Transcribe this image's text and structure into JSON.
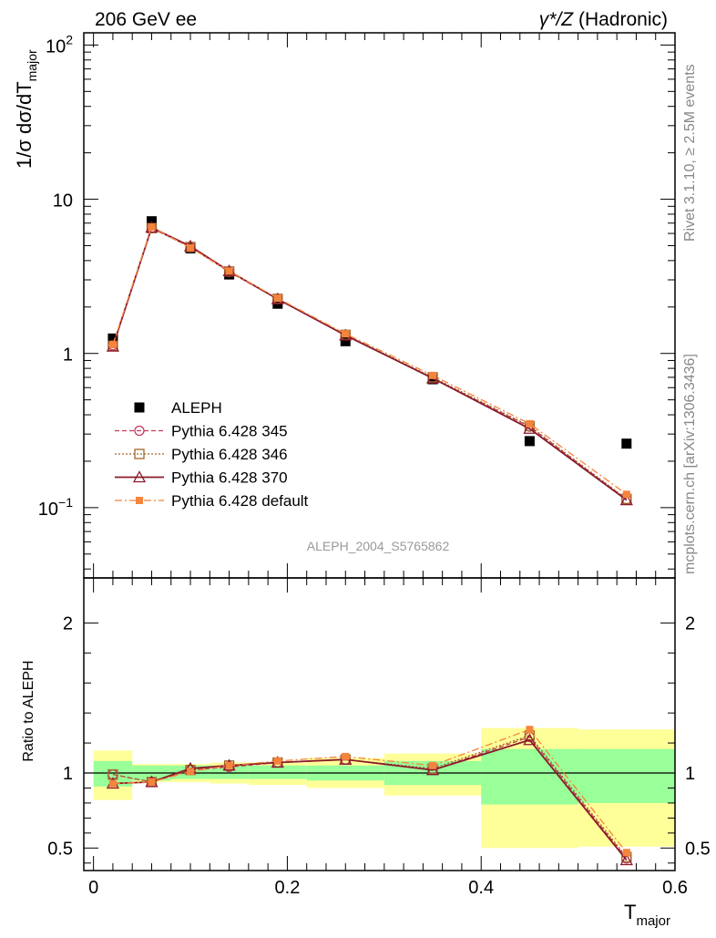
{
  "header": {
    "left": "206 GeV ee",
    "right_prefix": "γ*/Z",
    "right_suffix": " (Hadronic)"
  },
  "side_labels": {
    "rivet": "Rivet 3.1.10, ≥ 2.5M events",
    "mcplots": "mcplots.cern.ch [arXiv:1306.3436]"
  },
  "colors": {
    "aleph": "#000000",
    "p345": "#c8385a",
    "p346": "#a0662a",
    "p370": "#8b1a2b",
    "pdef": "#f5843c",
    "band_inner": "#99ff99",
    "band_outer": "#ffff99"
  },
  "chart_data": [
    {
      "type": "scatter",
      "panel": "main",
      "title": "206 GeV ee",
      "ylabel_main": "1/σ  dσ/dT",
      "ylabel_sub": "major",
      "yscale": "log",
      "ylim": [
        0.035,
        120
      ],
      "xlim": [
        -0.01,
        0.6
      ],
      "yticks": [
        {
          "value": 0.1,
          "label_base": "10",
          "label_exp": "−1"
        },
        {
          "value": 1,
          "label_base": "1",
          "label_exp": ""
        },
        {
          "value": 10,
          "label_base": "10",
          "label_exp": ""
        },
        {
          "value": 100,
          "label_base": "10",
          "label_exp": "2"
        }
      ],
      "x_edges": [
        0,
        0.04,
        0.08,
        0.12,
        0.16,
        0.22,
        0.3,
        0.4,
        0.5,
        0.6
      ],
      "x": [
        0.02,
        0.06,
        0.1,
        0.14,
        0.19,
        0.26,
        0.35,
        0.45,
        0.55
      ],
      "watermark": "ALEPH_2004_S5765862",
      "series": [
        {
          "key": "aleph",
          "name": "ALEPH",
          "values": [
            1.25,
            7.2,
            4.8,
            3.25,
            2.1,
            1.2,
            0.68,
            0.27,
            0.26
          ]
        },
        {
          "key": "p345",
          "name": "Pythia 6.428 345",
          "values": [
            1.13,
            6.5,
            4.88,
            3.38,
            2.25,
            1.31,
            0.69,
            0.335,
            0.113
          ]
        },
        {
          "key": "p346",
          "name": "Pythia 6.428 346",
          "values": [
            1.12,
            6.5,
            4.9,
            3.4,
            2.26,
            1.32,
            0.7,
            0.338,
            0.114
          ]
        },
        {
          "key": "p370",
          "name": "Pythia 6.428 370",
          "values": [
            1.11,
            6.55,
            4.95,
            3.42,
            2.25,
            1.31,
            0.69,
            0.325,
            0.112
          ]
        },
        {
          "key": "pdef",
          "name": "Pythia 6.428 default",
          "values": [
            1.14,
            6.6,
            4.85,
            3.42,
            2.28,
            1.34,
            0.72,
            0.35,
            0.122
          ]
        }
      ]
    },
    {
      "type": "line",
      "panel": "ratio",
      "ylabel": "Ratio to ALEPH",
      "xlabel_main": "T",
      "xlabel_sub": "major",
      "ylim": [
        0.35,
        2.3
      ],
      "xlim": [
        -0.01,
        0.6
      ],
      "yticks": [
        {
          "value": 0.5,
          "label": "0.5"
        },
        {
          "value": 1,
          "label": "1"
        },
        {
          "value": 2,
          "label": "2"
        }
      ],
      "xticks": [
        {
          "value": 0,
          "label": "0"
        },
        {
          "value": 0.2,
          "label": "0.2"
        },
        {
          "value": 0.4,
          "label": "0.4"
        },
        {
          "value": 0.6,
          "label": "0.6"
        }
      ],
      "x": [
        0.02,
        0.06,
        0.1,
        0.14,
        0.19,
        0.26,
        0.35,
        0.45,
        0.55
      ],
      "bands": {
        "x_edges": [
          0,
          0.04,
          0.08,
          0.12,
          0.16,
          0.22,
          0.3,
          0.4,
          0.5,
          0.6
        ],
        "inner_lo": [
          0.91,
          0.95,
          0.96,
          0.96,
          0.96,
          0.95,
          0.92,
          0.79,
          0.8
        ],
        "inner_hi": [
          1.08,
          1.05,
          1.05,
          1.05,
          1.05,
          1.05,
          1.08,
          1.16,
          1.16
        ],
        "outer_lo": [
          0.82,
          0.94,
          0.94,
          0.93,
          0.92,
          0.9,
          0.85,
          0.5,
          0.51
        ],
        "outer_hi": [
          1.15,
          1.06,
          1.06,
          1.07,
          1.07,
          1.1,
          1.13,
          1.3,
          1.29
        ]
      },
      "series": [
        {
          "key": "p345",
          "name": "Pythia 6.428 345",
          "values": [
            0.99,
            0.94,
            1.02,
            1.04,
            1.07,
            1.09,
            1.02,
            1.24,
            0.43
          ]
        },
        {
          "key": "p346",
          "name": "Pythia 6.428 346",
          "values": [
            0.99,
            0.94,
            1.02,
            1.05,
            1.07,
            1.09,
            1.03,
            1.25,
            0.44
          ]
        },
        {
          "key": "p370",
          "name": "Pythia 6.428 370",
          "values": [
            0.93,
            0.94,
            1.03,
            1.05,
            1.07,
            1.09,
            1.02,
            1.22,
            0.42
          ]
        },
        {
          "key": "pdef",
          "name": "Pythia 6.428 default",
          "values": [
            0.93,
            0.94,
            1.01,
            1.05,
            1.08,
            1.11,
            1.05,
            1.29,
            0.47
          ]
        }
      ]
    }
  ]
}
